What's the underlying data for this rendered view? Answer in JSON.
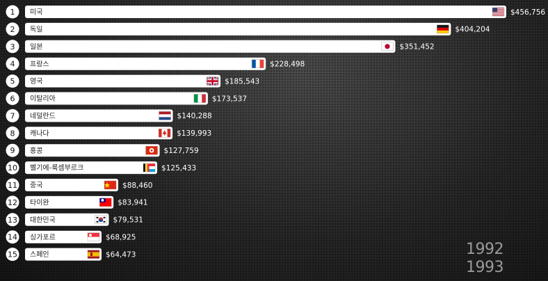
{
  "chart_data": {
    "type": "bar",
    "orientation": "horizontal",
    "ranks": [
      1,
      2,
      3,
      4,
      5,
      6,
      7,
      8,
      9,
      10,
      11,
      12,
      13,
      14,
      15
    ],
    "categories": [
      "미국",
      "독일",
      "일본",
      "프랑스",
      "영국",
      "이탈리아",
      "네덜란드",
      "캐나다",
      "홍콩",
      "벨기에-룩셈부르크",
      "중국",
      "타이완",
      "대한민국",
      "싱가포르",
      "스페인"
    ],
    "values": [
      456756,
      404204,
      351452,
      228498,
      185543,
      173537,
      140288,
      139993,
      127759,
      125433,
      88460,
      83941,
      79531,
      68925,
      64473
    ],
    "value_labels": [
      "$456,756",
      "$404,204",
      "$351,452",
      "$228,498",
      "$185,543",
      "$173,537",
      "$140,288",
      "$139,993",
      "$127,759",
      "$125,433",
      "$88,460",
      "$83,941",
      "$79,531",
      "$68,925",
      "$64,473"
    ],
    "flags": [
      "us-flag-icon",
      "germany-flag-icon",
      "japan-flag-icon",
      "france-flag-icon",
      "uk-flag-icon",
      "italy-flag-icon",
      "netherlands-flag-icon",
      "canada-flag-icon",
      "hongkong-flag-icon",
      "belgium-luxembourg-flag-icon",
      "china-flag-icon",
      "taiwan-flag-icon",
      "korea-flag-icon",
      "singapore-flag-icon",
      "spain-flag-icon"
    ],
    "years": [
      "1992",
      "1993"
    ],
    "legend": "none",
    "grid": false
  }
}
